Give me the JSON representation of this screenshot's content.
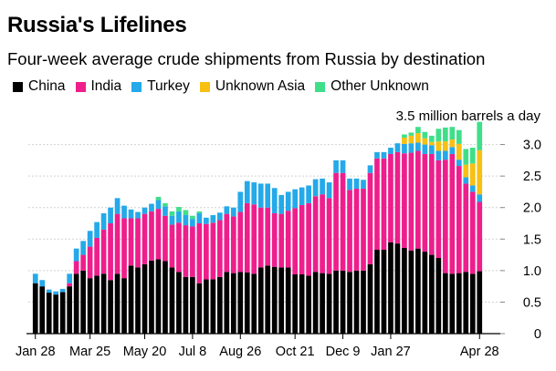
{
  "header": {
    "title": "Russia's Lifelines",
    "subtitle": "Four-week average crude shipments from Russia by destination"
  },
  "chart_data": {
    "type": "bar",
    "stacked": true,
    "title": "Russia's Lifelines",
    "subtitle": "Four-week average crude shipments from Russia by destination",
    "unit_label": "3.5 million barrels a day",
    "ylim": [
      0,
      3.5
    ],
    "yticks": [
      0,
      0.5,
      1.0,
      1.5,
      2.0,
      2.5,
      3.0
    ],
    "ytick_labels": [
      "0",
      "0.5",
      "1.0",
      "1.5",
      "2.0",
      "2.5",
      "3.0"
    ],
    "xtick_labels": [
      {
        "label": "Jan 28",
        "index": 0
      },
      {
        "label": "Mar 25",
        "index": 8
      },
      {
        "label": "May 20",
        "index": 16
      },
      {
        "label": "Jul 8",
        "index": 23
      },
      {
        "label": "Aug 26",
        "index": 30
      },
      {
        "label": "Oct 21",
        "index": 38
      },
      {
        "label": "Dec 9",
        "index": 45
      },
      {
        "label": "Jan 27",
        "index": 52
      },
      {
        "label": "Apr 28",
        "index": 65
      }
    ],
    "legend": [
      {
        "name": "China",
        "color": "#000000"
      },
      {
        "name": "India",
        "color": "#ee1e8c"
      },
      {
        "name": "Turkey",
        "color": "#24a9e9"
      },
      {
        "name": "Unknown Asia",
        "color": "#f7c012"
      },
      {
        "name": "Other Unknown",
        "color": "#3fdf8a"
      }
    ],
    "series": [
      {
        "name": "China",
        "color": "#000000",
        "values": [
          0.8,
          0.75,
          0.65,
          0.62,
          0.66,
          0.75,
          0.95,
          1.0,
          0.88,
          0.92,
          0.95,
          0.85,
          0.95,
          0.88,
          1.08,
          1.05,
          1.1,
          1.16,
          1.18,
          1.15,
          1.05,
          0.98,
          0.9,
          0.9,
          0.8,
          0.86,
          0.86,
          0.9,
          0.98,
          0.96,
          0.98,
          0.97,
          0.95,
          1.05,
          1.08,
          1.06,
          1.05,
          1.05,
          0.94,
          0.94,
          0.92,
          0.98,
          0.96,
          0.95,
          1.0,
          1.0,
          0.98,
          1.0,
          1.0,
          1.1,
          1.33,
          1.33,
          1.45,
          1.43,
          1.36,
          1.32,
          1.35,
          1.3,
          1.25,
          1.2,
          0.96,
          0.95,
          0.96,
          0.98,
          0.95,
          0.99
        ]
      },
      {
        "name": "India",
        "color": "#ee1e8c",
        "values": [
          0.0,
          0.0,
          0.0,
          0.0,
          0.0,
          0.05,
          0.2,
          0.25,
          0.5,
          0.6,
          0.7,
          0.9,
          0.95,
          0.95,
          0.75,
          0.78,
          0.8,
          0.78,
          0.8,
          0.72,
          0.68,
          0.78,
          0.82,
          0.8,
          0.95,
          0.88,
          0.9,
          0.9,
          0.92,
          0.9,
          0.95,
          1.1,
          1.1,
          0.95,
          0.92,
          0.85,
          0.85,
          0.9,
          1.05,
          1.1,
          1.15,
          1.2,
          1.25,
          1.2,
          1.55,
          1.55,
          1.3,
          1.3,
          1.3,
          1.45,
          1.45,
          1.45,
          1.4,
          1.45,
          1.5,
          1.55,
          1.55,
          1.55,
          1.6,
          1.55,
          1.8,
          1.9,
          1.7,
          1.4,
          1.3,
          1.1
        ]
      },
      {
        "name": "Turkey",
        "color": "#24a9e9",
        "values": [
          0.15,
          0.1,
          0.05,
          0.05,
          0.05,
          0.15,
          0.2,
          0.22,
          0.25,
          0.25,
          0.26,
          0.25,
          0.25,
          0.2,
          0.14,
          0.1,
          0.1,
          0.12,
          0.14,
          0.15,
          0.14,
          0.18,
          0.16,
          0.12,
          0.16,
          0.1,
          0.12,
          0.12,
          0.12,
          0.14,
          0.32,
          0.35,
          0.35,
          0.38,
          0.38,
          0.4,
          0.3,
          0.3,
          0.3,
          0.28,
          0.28,
          0.27,
          0.25,
          0.25,
          0.2,
          0.2,
          0.18,
          0.16,
          0.14,
          0.12,
          0.1,
          0.1,
          0.1,
          0.14,
          0.15,
          0.15,
          0.13,
          0.15,
          0.14,
          0.15,
          0.14,
          0.11,
          0.1,
          0.1,
          0.1,
          0.12
        ]
      },
      {
        "name": "Unknown Asia",
        "color": "#f7c012",
        "values": [
          0,
          0,
          0,
          0,
          0,
          0,
          0,
          0,
          0,
          0,
          0,
          0,
          0,
          0,
          0,
          0,
          0,
          0,
          0,
          0,
          0,
          0,
          0,
          0,
          0,
          0,
          0,
          0,
          0,
          0,
          0,
          0,
          0,
          0,
          0,
          0,
          0,
          0,
          0,
          0,
          0,
          0,
          0,
          0,
          0,
          0,
          0,
          0,
          0,
          0,
          0,
          0,
          0,
          0,
          0.1,
          0.12,
          0.15,
          0.1,
          0.05,
          0.15,
          0.15,
          0.12,
          0.25,
          0.2,
          0.35,
          0.7
        ]
      },
      {
        "name": "Other Unknown",
        "color": "#3fdf8a",
        "values": [
          0,
          0,
          0,
          0,
          0,
          0,
          0,
          0,
          0,
          0,
          0,
          0,
          0,
          0,
          0,
          0,
          0,
          0,
          0.05,
          0.05,
          0.07,
          0.07,
          0.08,
          0.05,
          0.03,
          0,
          0,
          0,
          0,
          0,
          0,
          0,
          0,
          0,
          0,
          0,
          0,
          0,
          0,
          0,
          0,
          0,
          0,
          0,
          0,
          0,
          0,
          0,
          0,
          0,
          0,
          0,
          0,
          0,
          0.05,
          0.05,
          0.1,
          0.1,
          0.1,
          0.2,
          0.22,
          0.2,
          0.22,
          0.25,
          0.25,
          0.45
        ]
      }
    ]
  }
}
